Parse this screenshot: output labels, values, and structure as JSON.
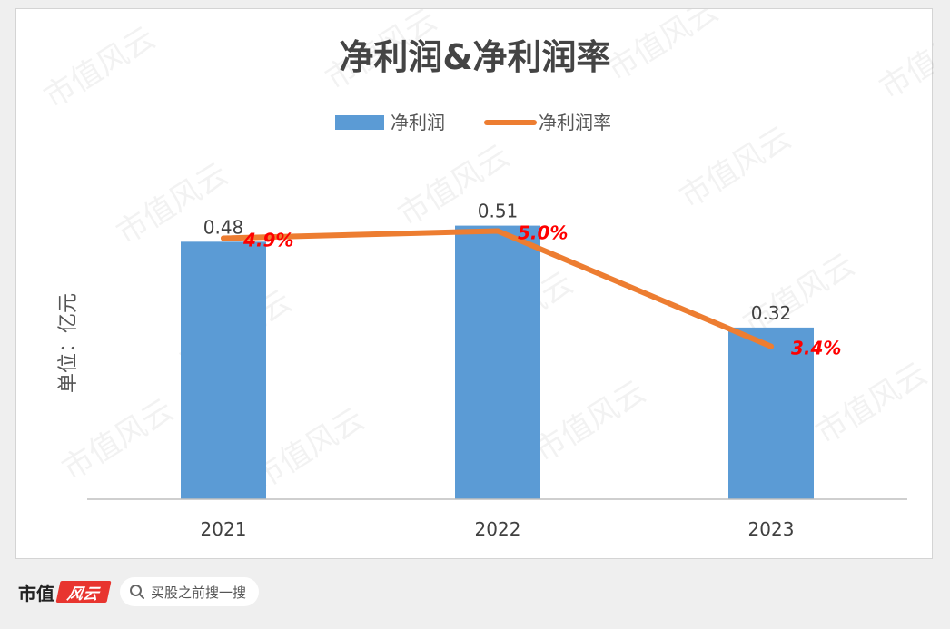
{
  "chart_data": {
    "type": "bar",
    "title": "净利润&净利润率",
    "ylabel": "单位：亿元",
    "categories": [
      "2021",
      "2022",
      "2023"
    ],
    "series": [
      {
        "name": "净利润",
        "type": "bar",
        "values": [
          0.48,
          0.51,
          0.32
        ],
        "labels": [
          "0.48",
          "0.51",
          "0.32"
        ],
        "color": "#5b9bd5"
      },
      {
        "name": "净利润率",
        "type": "line",
        "values": [
          4.9,
          5.0,
          3.4
        ],
        "labels": [
          "4.9%",
          "5.0%",
          "3.4%"
        ],
        "color": "#ed7d31",
        "label_color": "#ff0000"
      }
    ],
    "legend_position": "top-center",
    "grid": false
  },
  "watermark": "市值风云",
  "footer": {
    "brand_text": "市值",
    "brand_badge": "风云",
    "search_text": "买股之前搜一搜",
    "search_icon": "search-icon"
  }
}
